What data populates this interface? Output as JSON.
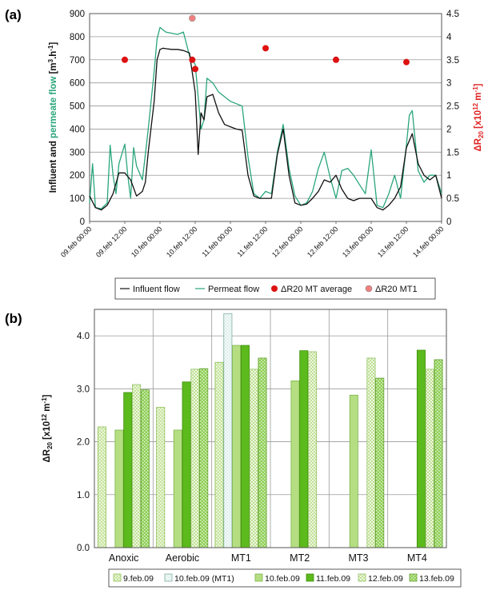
{
  "panel_a": {
    "label": "(a)",
    "ylabel_left": {
      "part1": "Influent and ",
      "part2": "permeate flow",
      "part3": " [m",
      "sup1": "3",
      "part4": ".h",
      "sup2": "-1",
      "part5": "]"
    },
    "ylabel_right": {
      "pre": "ΔR",
      "sub": "20",
      "mid": " [x10",
      "sup": "12",
      "post": " m",
      "sup2": "-1",
      "end": "]"
    },
    "legend": [
      "Influent flow",
      "Permeat flow",
      "ΔR20  MT average",
      "ΔR20  MT1"
    ]
  },
  "panel_b": {
    "label": "(b)",
    "ylabel": {
      "pre": "ΔR",
      "sub": "20",
      "mid": " [x10",
      "sup": "12",
      "post": " m",
      "sup2": "-1",
      "end": "]"
    }
  },
  "colors": {
    "influent": "#111111",
    "permeate": "#2aa67a",
    "avg_marker": "#dd1111",
    "mt1_marker": "#f08080"
  },
  "chart_data": [
    {
      "type": "line",
      "x_ticks": [
        "09.feb 00:00",
        "09.feb 12:00",
        "10.feb 00:00",
        "10.feb 12:00",
        "11.feb 00:00",
        "11.feb 12:00",
        "12.feb 00:00",
        "12.feb 12:00",
        "13.feb 00:00",
        "13.feb 12:00",
        "14.feb 00:00"
      ],
      "xlim_hours": [
        0,
        120
      ],
      "ylim_left": [
        0,
        900
      ],
      "ylim_right": [
        0,
        4.5
      ],
      "yticks_left": [
        "0",
        "100",
        "200",
        "300",
        "400",
        "500",
        "600",
        "700",
        "800",
        "900"
      ],
      "yticks_right": [
        "0",
        "0.5",
        "1",
        "1.5",
        "2",
        "2.5",
        "3",
        "3.5",
        "4",
        "4.5"
      ],
      "grid": true,
      "legend_placement": "bottom",
      "series": [
        {
          "name": "Influent flow",
          "axis": "left",
          "x": [
            0,
            2,
            4,
            6,
            8,
            10,
            12,
            14,
            16,
            18,
            19,
            20,
            22,
            23,
            24,
            25,
            26,
            28,
            30,
            32,
            34,
            36,
            37,
            38,
            39,
            40,
            42,
            44,
            46,
            48,
            50,
            52,
            54,
            56,
            58,
            60,
            62,
            64,
            66,
            68,
            70,
            72,
            74,
            76,
            78,
            80,
            82,
            84,
            86,
            88,
            90,
            92,
            94,
            96,
            98,
            100,
            102,
            104,
            106,
            108,
            110,
            112,
            114,
            116,
            118,
            120
          ],
          "y": [
            110,
            60,
            50,
            70,
            120,
            210,
            210,
            180,
            110,
            130,
            170,
            300,
            520,
            700,
            745,
            750,
            748,
            745,
            745,
            740,
            730,
            560,
            290,
            470,
            440,
            540,
            550,
            470,
            420,
            410,
            400,
            395,
            200,
            110,
            100,
            100,
            100,
            290,
            400,
            200,
            80,
            70,
            75,
            100,
            130,
            180,
            170,
            200,
            140,
            100,
            90,
            100,
            100,
            100,
            60,
            50,
            70,
            100,
            150,
            320,
            380,
            250,
            200,
            180,
            200,
            100
          ]
        },
        {
          "name": "Permeat flow",
          "axis": "left",
          "x": [
            0,
            1,
            2,
            4,
            6,
            7,
            8,
            9,
            10,
            12,
            13,
            14,
            15,
            16,
            18,
            19,
            20,
            22,
            23,
            24,
            25,
            26,
            28,
            30,
            32,
            34,
            36,
            37,
            38,
            39,
            40,
            42,
            44,
            46,
            48,
            50,
            52,
            54,
            56,
            58,
            60,
            62,
            64,
            66,
            68,
            70,
            72,
            74,
            76,
            78,
            80,
            82,
            84,
            86,
            88,
            90,
            92,
            94,
            96,
            98,
            100,
            102,
            104,
            106,
            108,
            109,
            110,
            112,
            114,
            116,
            118,
            120
          ],
          "y": [
            80,
            250,
            60,
            55,
            80,
            330,
            200,
            120,
            250,
            335,
            200,
            100,
            320,
            240,
            180,
            290,
            400,
            650,
            790,
            840,
            830,
            820,
            815,
            810,
            820,
            720,
            680,
            540,
            400,
            440,
            620,
            600,
            560,
            540,
            520,
            510,
            500,
            280,
            120,
            100,
            130,
            120,
            300,
            420,
            230,
            110,
            70,
            80,
            130,
            230,
            300,
            190,
            100,
            220,
            230,
            200,
            160,
            120,
            310,
            70,
            60,
            120,
            200,
            100,
            330,
            460,
            480,
            220,
            170,
            200,
            200,
            120
          ]
        }
      ],
      "scatter": [
        {
          "name": "ΔR20  MT average",
          "axis": "right",
          "x": [
            12,
            35,
            36,
            60,
            84,
            108
          ],
          "y": [
            3.5,
            3.5,
            3.3,
            3.75,
            3.5,
            3.45
          ]
        },
        {
          "name": "ΔR20  MT1",
          "axis": "right",
          "x": [
            35
          ],
          "y": [
            4.4
          ]
        }
      ]
    },
    {
      "type": "bar",
      "categories": [
        "Anoxic",
        "Aerobic",
        "MT1",
        "MT2",
        "MT3",
        "MT4"
      ],
      "ylim": [
        0,
        4.5
      ],
      "yticks": [
        "0.0",
        "1.0",
        "2.0",
        "3.0",
        "4.0"
      ],
      "grid": true,
      "legend_placement": "bottom",
      "series": [
        {
          "name": "9.feb.09",
          "values": [
            2.28,
            2.65,
            3.5,
            null,
            null,
            null
          ]
        },
        {
          "name": "10.feb.09 (MT1)",
          "values": [
            null,
            null,
            4.42,
            null,
            null,
            null
          ]
        },
        {
          "name": "10.feb.09",
          "values": [
            2.22,
            2.22,
            3.82,
            3.15,
            2.88,
            null
          ]
        },
        {
          "name": "11.feb.09",
          "values": [
            2.93,
            3.13,
            3.82,
            3.72,
            null,
            3.73
          ]
        },
        {
          "name": "12.feb.09",
          "values": [
            3.08,
            3.37,
            3.37,
            3.7,
            3.58,
            3.37
          ]
        },
        {
          "name": "13.feb.09",
          "values": [
            2.98,
            3.38,
            3.58,
            null,
            3.2,
            3.55
          ]
        }
      ]
    }
  ]
}
